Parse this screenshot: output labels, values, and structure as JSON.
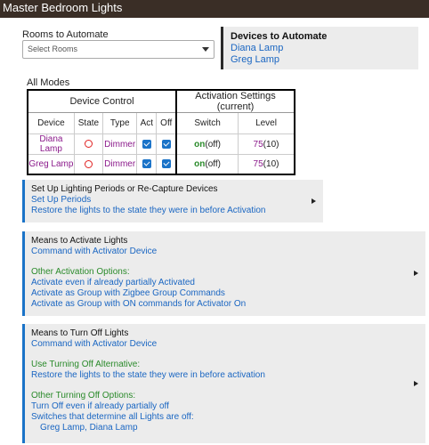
{
  "header": {
    "title": "Master Bedroom Lights"
  },
  "rooms": {
    "label": "Rooms to Automate",
    "placeholder": "Select Rooms"
  },
  "devices_box": {
    "title": "Devices to Automate",
    "devices": [
      "Diana Lamp",
      "Greg Lamp"
    ]
  },
  "modes_label": "All Modes",
  "table": {
    "group_headers": [
      "Device Control",
      "Activation Settings (current)"
    ],
    "columns": [
      "Device",
      "State",
      "Type",
      "Act",
      "Off",
      "Switch",
      "Level"
    ],
    "rows": [
      {
        "device": "Diana Lamp",
        "state": "off",
        "type": "Dimmer",
        "act": true,
        "off": true,
        "switch_on": "on",
        "switch_cur": "(off)",
        "level": "75",
        "level_cur": "(10)"
      },
      {
        "device": "Greg Lamp",
        "state": "off",
        "type": "Dimmer",
        "act": true,
        "off": true,
        "switch_on": "on",
        "switch_cur": "(off)",
        "level": "75",
        "level_cur": "(10)"
      }
    ]
  },
  "panel1": {
    "title": "Set Up Lighting Periods or Re-Capture Devices",
    "link1": "Set Up Periods",
    "link2": "Restore the lights to the state they were in before Activation"
  },
  "panel2": {
    "title": "Means to Activate Lights",
    "link1": "Command with Activator Device",
    "section": "Other Activation Options:",
    "opt1": "Activate even if already partially Activated",
    "opt2": "Activate as Group with Zigbee Group Commands",
    "opt3": "Activate as Group with ON commands for Activator On"
  },
  "panel3": {
    "title": "Means to Turn Off Lights",
    "link1": "Command with Activator Device",
    "section1": "Use Turning Off Alternative:",
    "alt1": "Restore the lights to the state they were in before activation",
    "section2": "Other Turning Off Options:",
    "opt1": "Turn Off even if already partially off",
    "opt2": "Switches that determine all Lights are off:",
    "opt3": "Greg Lamp, Diana Lamp"
  },
  "colors": {
    "topbar": "#3a2e26",
    "accent": "#1a73c8",
    "link": "#1a66c2",
    "green": "#2a8a2a",
    "purple": "#8b1a8b",
    "state_off": "#e02020"
  }
}
